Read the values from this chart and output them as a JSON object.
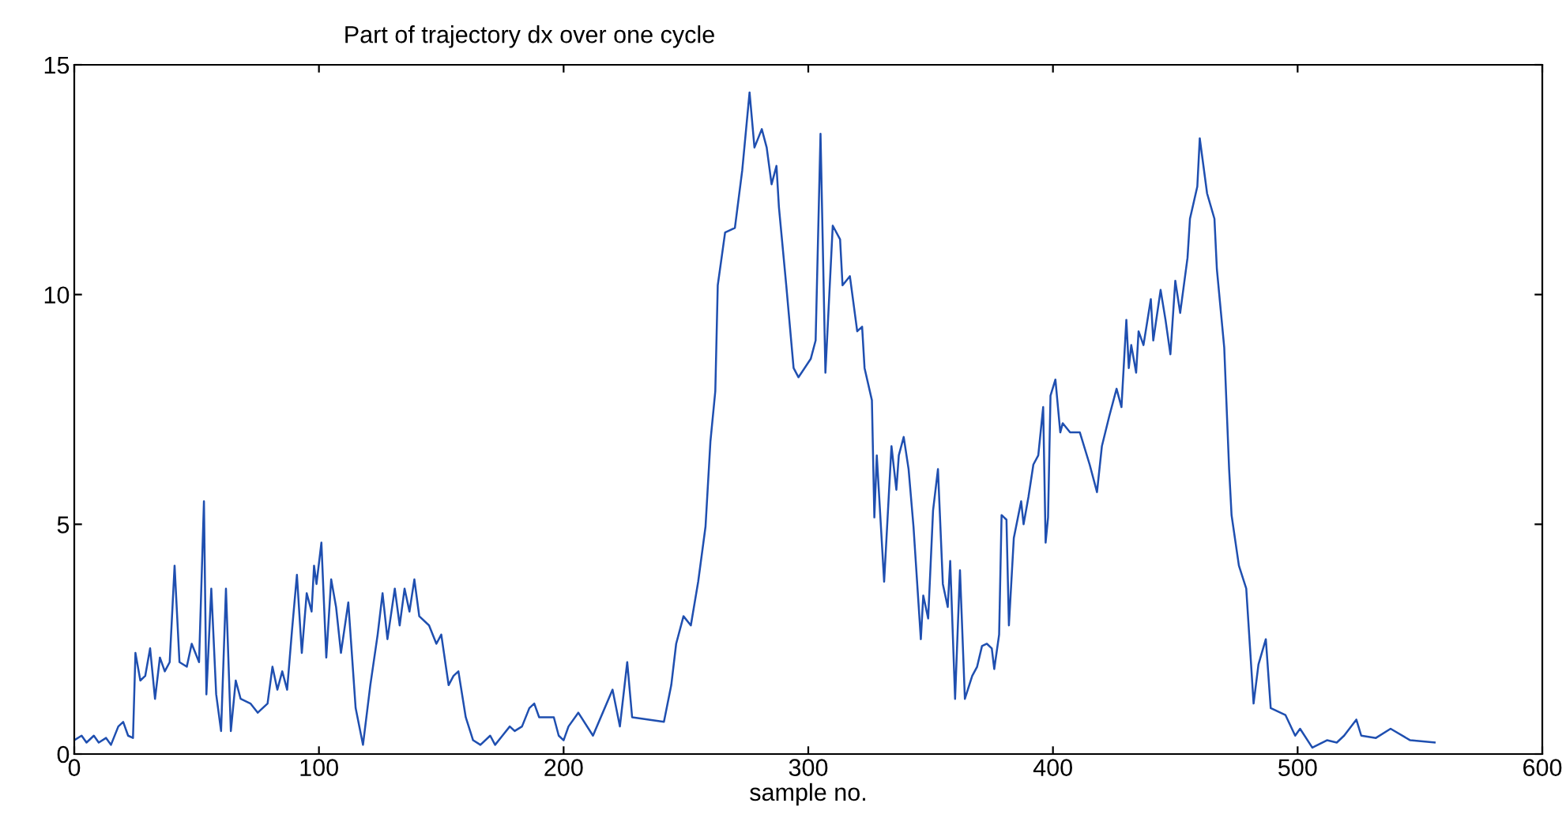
{
  "chart_data": {
    "type": "line",
    "title": "Part of trajectory dx over one cycle",
    "xlabel": "sample no.",
    "xlim": [
      0,
      600
    ],
    "xticks": [
      0,
      100,
      200,
      300,
      400,
      500,
      600
    ],
    "ylim": [
      0,
      15
    ],
    "yticks": [
      0,
      5,
      10,
      15
    ],
    "grid": false,
    "legend": false,
    "series": [
      {
        "color": "#1f4fb0",
        "x": [
          0,
          3,
          5,
          8,
          10,
          13,
          15,
          18,
          20,
          22,
          24,
          25,
          27,
          29,
          31,
          33,
          35,
          37,
          39,
          41,
          43,
          46,
          48,
          51,
          53,
          54,
          56,
          58,
          60,
          62,
          64,
          66,
          68,
          72,
          75,
          79,
          81,
          83,
          85,
          87,
          89,
          91,
          93,
          95,
          97,
          98,
          99,
          101,
          103,
          105,
          107,
          109,
          112,
          115,
          118,
          121,
          124,
          126,
          128,
          131,
          133,
          135,
          137,
          139,
          141,
          145,
          148,
          150,
          153,
          155,
          157,
          160,
          163,
          166,
          170,
          172,
          175,
          178,
          180,
          183,
          186,
          188,
          190,
          193,
          196,
          198,
          200,
          202,
          206,
          212,
          220,
          223,
          226,
          228,
          241,
          244,
          246,
          249,
          252,
          255,
          258,
          260,
          262,
          263,
          266,
          270,
          273,
          276,
          278,
          281,
          283,
          285,
          287,
          288,
          291,
          294,
          296,
          301,
          303,
          305,
          307,
          310,
          313,
          314,
          317,
          320,
          322,
          323,
          326,
          327,
          328,
          331,
          334,
          336,
          337,
          339,
          341,
          343,
          346,
          347,
          349,
          351,
          353,
          355,
          357,
          358,
          360,
          362,
          364,
          367,
          369,
          371,
          373,
          375,
          376,
          378,
          379,
          381,
          382,
          384,
          387,
          388,
          390,
          392,
          394,
          396,
          397,
          398,
          399,
          401,
          403,
          404,
          407,
          411,
          415,
          418,
          420,
          423,
          426,
          428,
          430,
          431,
          432,
          434,
          435,
          437,
          440,
          441,
          444,
          446,
          448,
          450,
          452,
          455,
          456,
          459,
          460,
          463,
          466,
          467,
          470,
          472,
          473,
          476,
          479,
          482,
          484,
          487,
          489,
          495,
          499,
          501,
          506,
          512,
          516,
          519,
          524,
          526,
          532,
          538,
          546,
          556
        ],
        "values": [
          0.3,
          0.4,
          0.25,
          0.4,
          0.25,
          0.35,
          0.2,
          0.6,
          0.7,
          0.4,
          0.35,
          2.2,
          1.6,
          1.7,
          2.3,
          1.2,
          2.1,
          1.8,
          2.0,
          4.1,
          2.0,
          1.9,
          2.4,
          2.0,
          5.5,
          1.3,
          3.6,
          1.3,
          0.5,
          3.6,
          0.5,
          1.6,
          1.2,
          1.1,
          0.9,
          1.1,
          1.9,
          1.4,
          1.8,
          1.4,
          2.7,
          3.9,
          2.2,
          3.5,
          3.1,
          4.1,
          3.7,
          4.6,
          2.1,
          3.8,
          3.2,
          2.2,
          3.3,
          1.0,
          0.2,
          1.5,
          2.6,
          3.5,
          2.5,
          3.6,
          2.8,
          3.6,
          3.1,
          3.8,
          3.0,
          2.8,
          2.4,
          2.6,
          1.5,
          1.7,
          1.8,
          0.8,
          0.3,
          0.2,
          0.4,
          0.2,
          0.4,
          0.6,
          0.5,
          0.6,
          1.0,
          1.1,
          0.8,
          0.8,
          0.8,
          0.4,
          0.3,
          0.6,
          0.9,
          0.4,
          1.4,
          0.6,
          2.0,
          0.8,
          0.7,
          1.5,
          2.4,
          3.0,
          2.8,
          3.75,
          4.95,
          6.8,
          7.9,
          10.2,
          11.35,
          11.45,
          12.7,
          14.4,
          13.2,
          13.6,
          13.2,
          12.4,
          12.8,
          11.9,
          10.2,
          8.4,
          8.2,
          8.6,
          9.0,
          13.5,
          8.3,
          11.5,
          11.2,
          10.2,
          10.4,
          9.2,
          9.3,
          8.4,
          7.7,
          5.15,
          6.5,
          3.75,
          6.7,
          5.75,
          6.5,
          6.9,
          6.2,
          4.95,
          2.5,
          3.45,
          2.95,
          5.3,
          6.2,
          3.7,
          3.2,
          4.2,
          1.2,
          4.0,
          1.2,
          1.7,
          1.9,
          2.35,
          2.4,
          2.3,
          1.85,
          2.6,
          5.2,
          5.1,
          2.8,
          4.7,
          5.5,
          5.0,
          5.6,
          6.3,
          6.5,
          7.55,
          4.6,
          5.15,
          7.8,
          8.15,
          7.0,
          7.2,
          7.0,
          7.0,
          6.3,
          5.7,
          6.7,
          7.35,
          7.95,
          7.55,
          9.45,
          8.4,
          8.9,
          8.3,
          9.2,
          8.9,
          9.9,
          9.0,
          10.1,
          9.45,
          8.7,
          10.3,
          9.6,
          10.8,
          11.65,
          12.35,
          13.4,
          12.2,
          11.65,
          10.55,
          8.85,
          6.2,
          5.2,
          4.1,
          3.6,
          1.1,
          1.95,
          2.5,
          1.0,
          0.85,
          0.4,
          0.55,
          0.14,
          0.3,
          0.25,
          0.4,
          0.75,
          0.4,
          0.35,
          0.55,
          0.3,
          0.25
        ]
      }
    ]
  }
}
